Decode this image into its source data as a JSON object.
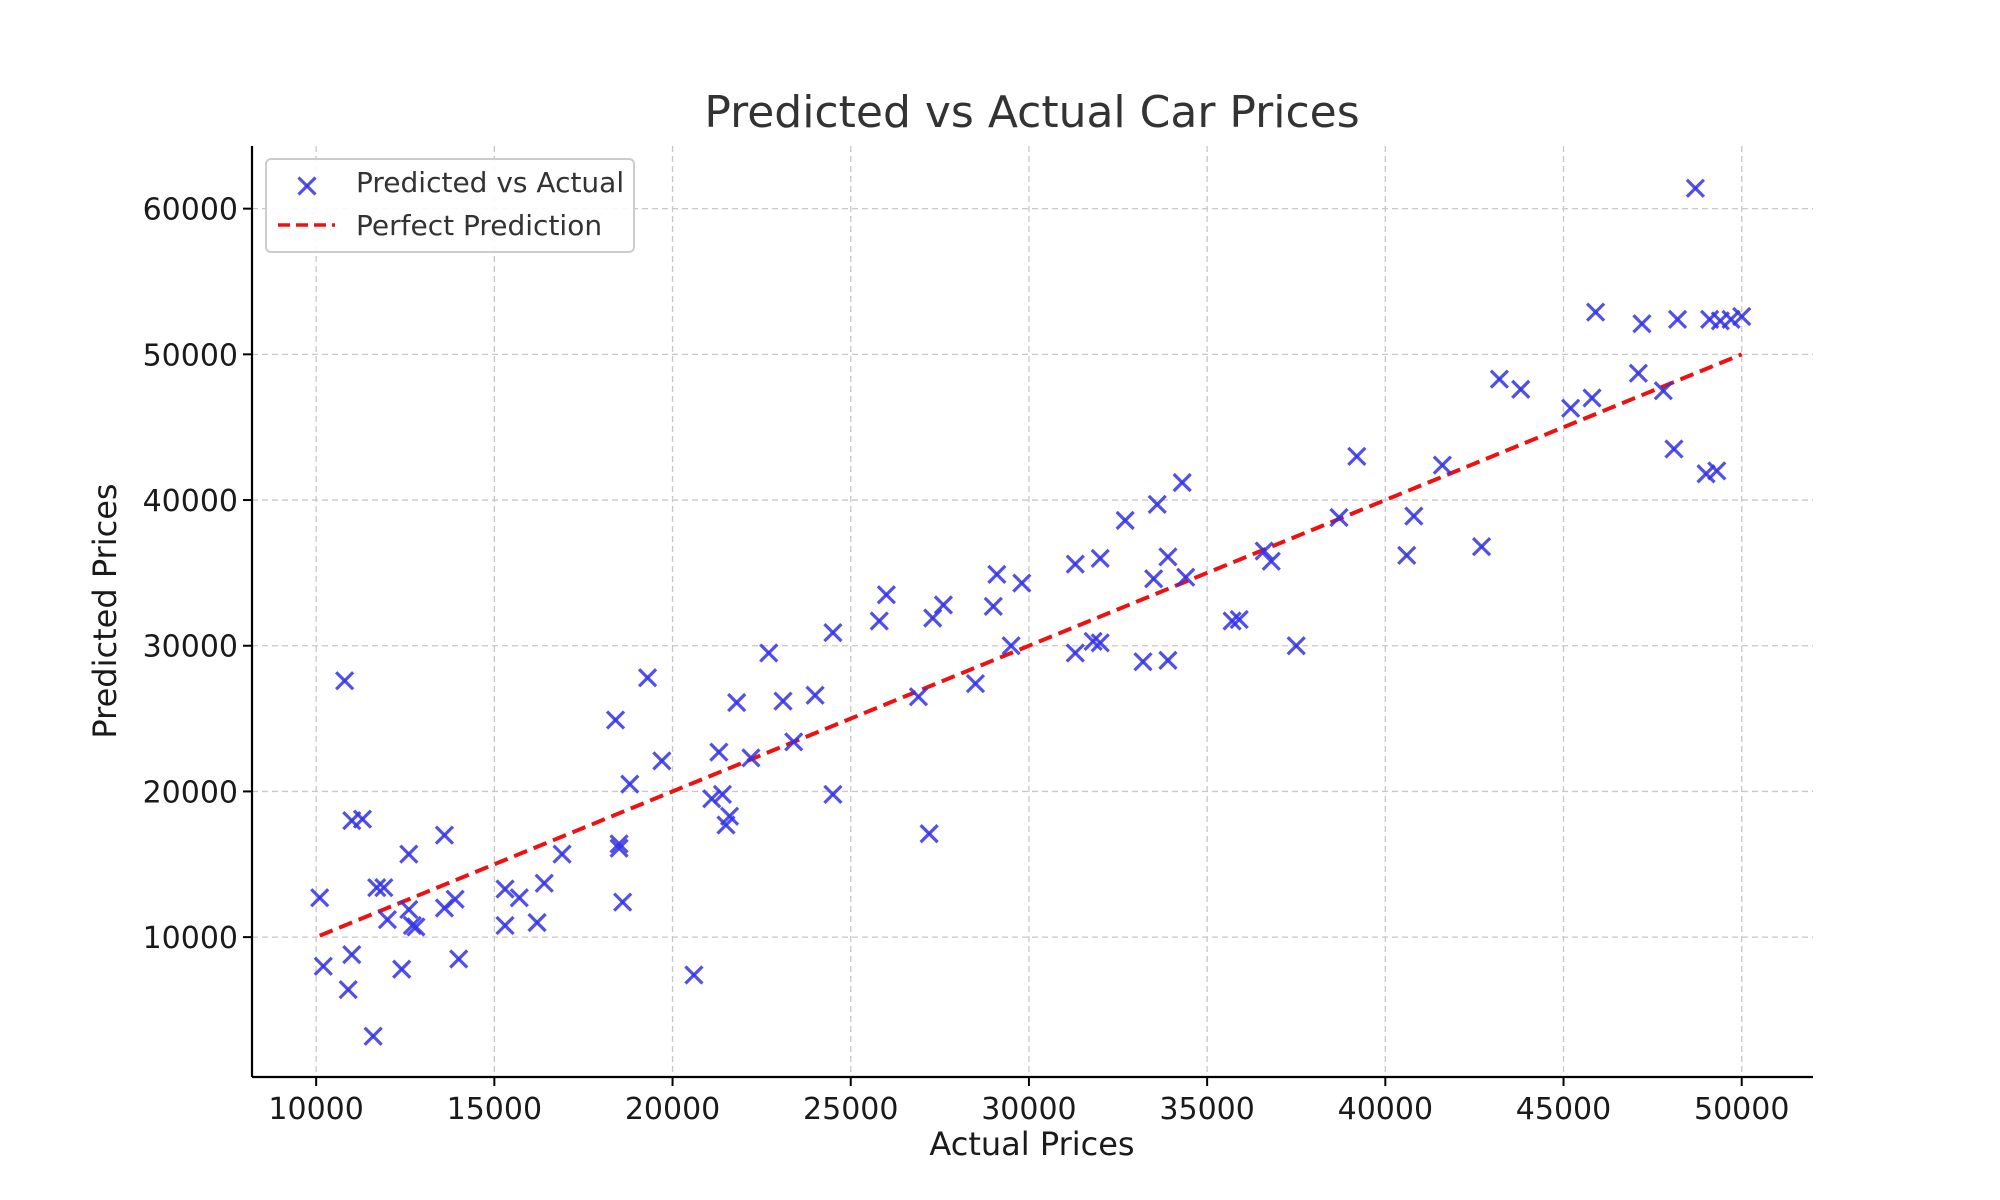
{
  "chart_data": {
    "type": "scatter",
    "title": "Predicted vs Actual Car Prices",
    "xlabel": "Actual Prices",
    "ylabel": "Predicted Prices",
    "xlim": [
      8200,
      52000
    ],
    "ylim": [
      400,
      64300
    ],
    "xticks": [
      10000,
      15000,
      20000,
      25000,
      30000,
      35000,
      40000,
      45000,
      50000
    ],
    "yticks": [
      10000,
      20000,
      30000,
      40000,
      50000,
      60000
    ],
    "grid": true,
    "legend_position": "top-left",
    "colors": {
      "points": "#3333e6",
      "line": "#ee1111",
      "grid": "#c8c8c8",
      "axis": "#000000"
    },
    "series": [
      {
        "name": "Predicted vs Actual",
        "kind": "scatter",
        "marker": "x",
        "points": [
          [
            10100,
            12700
          ],
          [
            10200,
            8000
          ],
          [
            10800,
            27600
          ],
          [
            11000,
            18000
          ],
          [
            11300,
            18100
          ],
          [
            11000,
            8800
          ],
          [
            10900,
            6400
          ],
          [
            11700,
            13400
          ],
          [
            11900,
            13400
          ],
          [
            12000,
            11200
          ],
          [
            11600,
            3200
          ],
          [
            12600,
            15700
          ],
          [
            12600,
            11900
          ],
          [
            12700,
            10800
          ],
          [
            12800,
            10700
          ],
          [
            12400,
            7800
          ],
          [
            13600,
            17000
          ],
          [
            13600,
            12000
          ],
          [
            13900,
            12600
          ],
          [
            14000,
            8500
          ],
          [
            15300,
            13300
          ],
          [
            15700,
            12700
          ],
          [
            15300,
            10800
          ],
          [
            16200,
            11000
          ],
          [
            16400,
            13700
          ],
          [
            16900,
            15700
          ],
          [
            18400,
            24900
          ],
          [
            18500,
            16400
          ],
          [
            18500,
            16100
          ],
          [
            18600,
            12400
          ],
          [
            18800,
            20500
          ],
          [
            19300,
            27800
          ],
          [
            19700,
            22100
          ],
          [
            20600,
            7400
          ],
          [
            21100,
            19500
          ],
          [
            21300,
            22700
          ],
          [
            21400,
            19800
          ],
          [
            21600,
            18300
          ],
          [
            21500,
            17700
          ],
          [
            21800,
            26100
          ],
          [
            22200,
            22300
          ],
          [
            22700,
            29500
          ],
          [
            23100,
            26200
          ],
          [
            23400,
            23400
          ],
          [
            24000,
            26600
          ],
          [
            24500,
            30900
          ],
          [
            24500,
            19800
          ],
          [
            25800,
            31700
          ],
          [
            26000,
            33500
          ],
          [
            26900,
            26500
          ],
          [
            27200,
            17100
          ],
          [
            27300,
            31900
          ],
          [
            27600,
            32800
          ],
          [
            28500,
            27400
          ],
          [
            29000,
            32700
          ],
          [
            29100,
            34900
          ],
          [
            29500,
            30000
          ],
          [
            29800,
            34300
          ],
          [
            31300,
            35600
          ],
          [
            31300,
            29500
          ],
          [
            31800,
            30300
          ],
          [
            32000,
            30200
          ],
          [
            32000,
            36000
          ],
          [
            32700,
            38600
          ],
          [
            33200,
            28900
          ],
          [
            33500,
            34600
          ],
          [
            33600,
            39700
          ],
          [
            33900,
            36100
          ],
          [
            33900,
            29000
          ],
          [
            34300,
            41200
          ],
          [
            34400,
            34700
          ],
          [
            35700,
            31700
          ],
          [
            35900,
            31800
          ],
          [
            36600,
            36500
          ],
          [
            36800,
            35800
          ],
          [
            37500,
            30000
          ],
          [
            38700,
            38800
          ],
          [
            39200,
            43000
          ],
          [
            40600,
            36200
          ],
          [
            40800,
            38900
          ],
          [
            41600,
            42400
          ],
          [
            42700,
            36800
          ],
          [
            43200,
            48300
          ],
          [
            43800,
            47600
          ],
          [
            45200,
            46300
          ],
          [
            45800,
            47000
          ],
          [
            45900,
            52900
          ],
          [
            47100,
            48700
          ],
          [
            47200,
            52100
          ],
          [
            47800,
            47500
          ],
          [
            48100,
            43500
          ],
          [
            48200,
            52400
          ],
          [
            48700,
            61400
          ],
          [
            49000,
            41800
          ],
          [
            49100,
            52400
          ],
          [
            49300,
            42000
          ],
          [
            49400,
            52300
          ],
          [
            49700,
            52400
          ],
          [
            50000,
            52600
          ]
        ]
      },
      {
        "name": "Perfect Prediction",
        "kind": "line",
        "style": "dashed",
        "points": [
          [
            10100,
            10100
          ],
          [
            50000,
            50000
          ]
        ]
      }
    ]
  }
}
